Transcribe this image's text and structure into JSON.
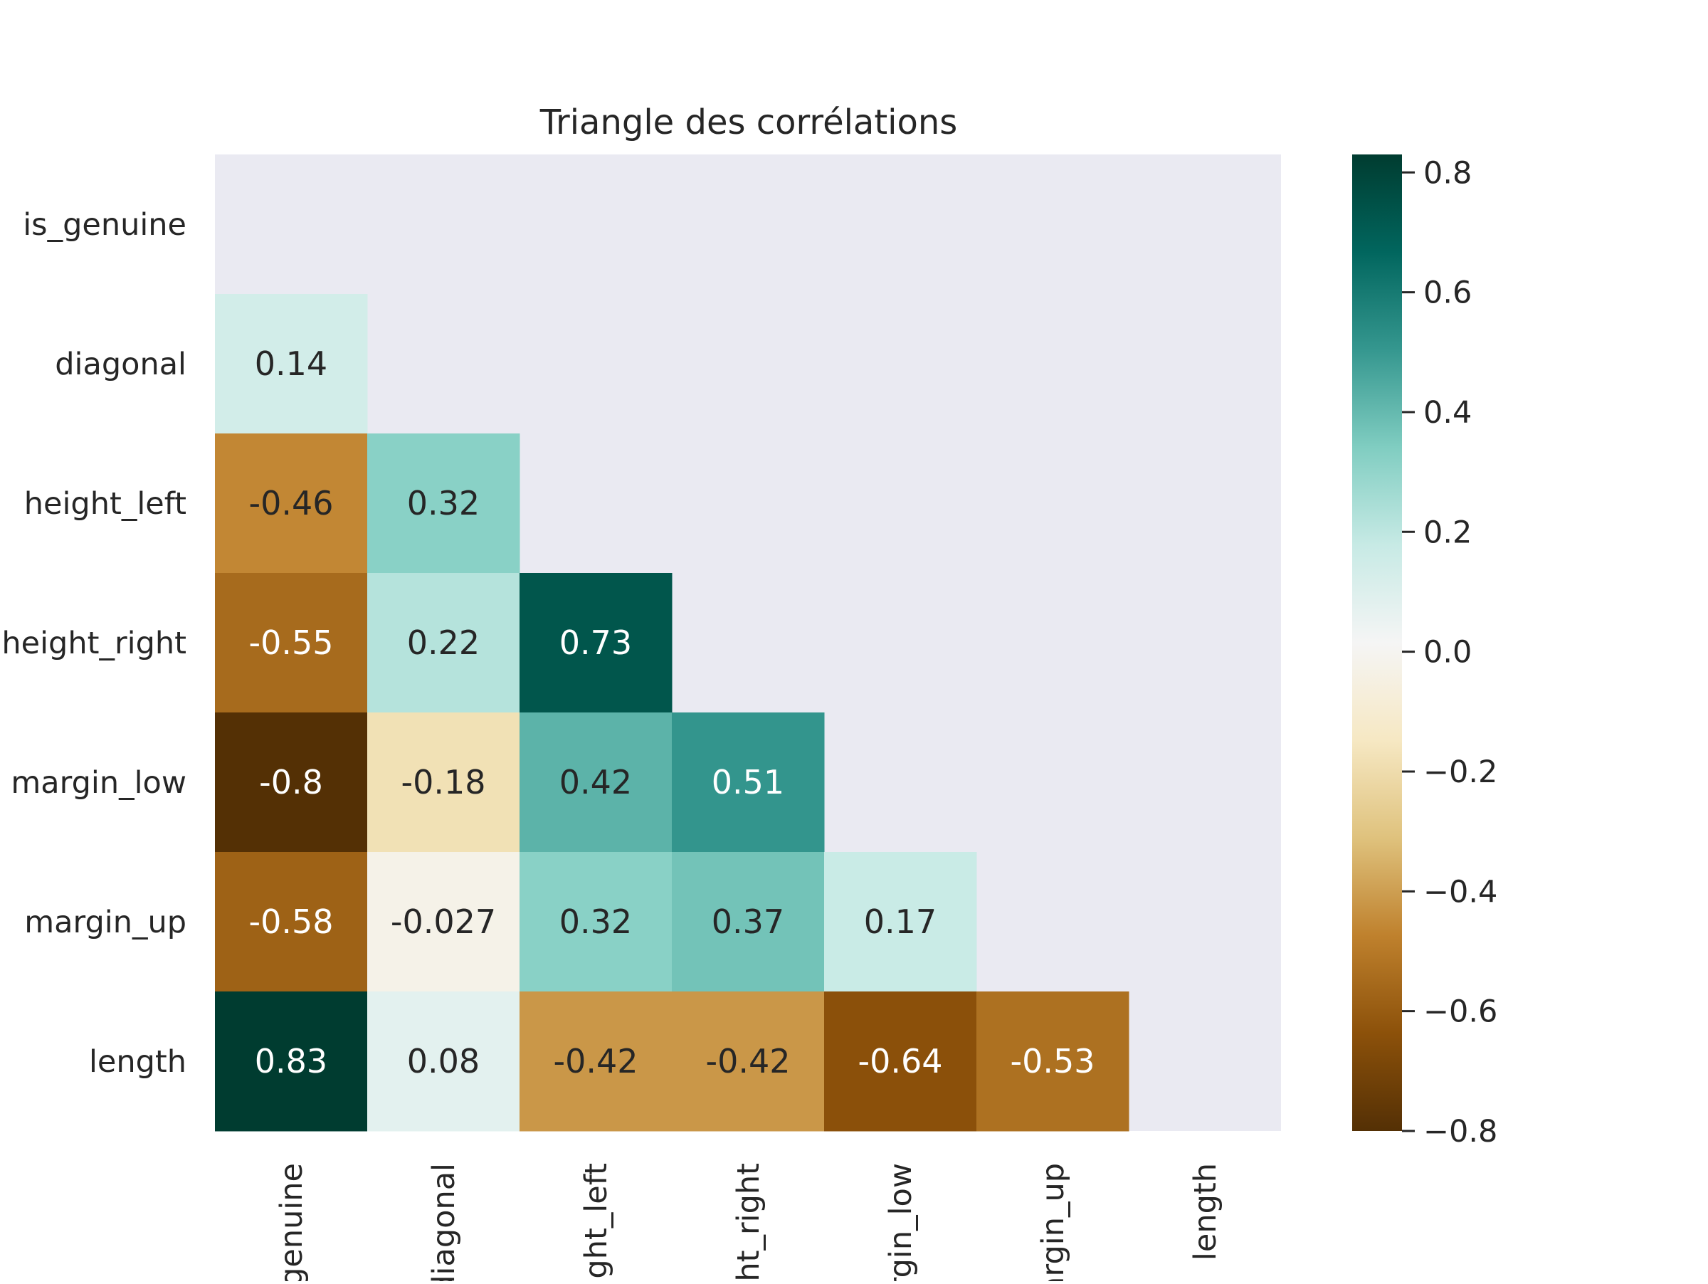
{
  "chart_data": {
    "type": "heatmap",
    "title": "Triangle des corrélations",
    "xlabel": "",
    "ylabel": "",
    "rows": [
      "is_genuine",
      "diagonal",
      "height_left",
      "height_right",
      "margin_low",
      "margin_up",
      "length"
    ],
    "columns": [
      "is_genuine",
      "diagonal",
      "height_left",
      "height_right",
      "margin_low",
      "margin_up",
      "length"
    ],
    "mask": "upper triangle incl. diagonal",
    "cells": [
      {
        "row": 1,
        "col": 0,
        "value": 0.14,
        "label": "0.14"
      },
      {
        "row": 2,
        "col": 0,
        "value": -0.46,
        "label": "-0.46"
      },
      {
        "row": 2,
        "col": 1,
        "value": 0.32,
        "label": "0.32"
      },
      {
        "row": 3,
        "col": 0,
        "value": -0.55,
        "label": "-0.55"
      },
      {
        "row": 3,
        "col": 1,
        "value": 0.22,
        "label": "0.22"
      },
      {
        "row": 3,
        "col": 2,
        "value": 0.73,
        "label": "0.73"
      },
      {
        "row": 4,
        "col": 0,
        "value": -0.8,
        "label": "-0.8"
      },
      {
        "row": 4,
        "col": 1,
        "value": -0.18,
        "label": "-0.18"
      },
      {
        "row": 4,
        "col": 2,
        "value": 0.42,
        "label": "0.42"
      },
      {
        "row": 4,
        "col": 3,
        "value": 0.51,
        "label": "0.51"
      },
      {
        "row": 5,
        "col": 0,
        "value": -0.58,
        "label": "-0.58"
      },
      {
        "row": 5,
        "col": 1,
        "value": -0.027,
        "label": "-0.027"
      },
      {
        "row": 5,
        "col": 2,
        "value": 0.32,
        "label": "0.32"
      },
      {
        "row": 5,
        "col": 3,
        "value": 0.37,
        "label": "0.37"
      },
      {
        "row": 5,
        "col": 4,
        "value": 0.17,
        "label": "0.17"
      },
      {
        "row": 6,
        "col": 0,
        "value": 0.83,
        "label": "0.83"
      },
      {
        "row": 6,
        "col": 1,
        "value": 0.08,
        "label": "0.08"
      },
      {
        "row": 6,
        "col": 2,
        "value": -0.42,
        "label": "-0.42"
      },
      {
        "row": 6,
        "col": 3,
        "value": -0.42,
        "label": "-0.42"
      },
      {
        "row": 6,
        "col": 4,
        "value": -0.64,
        "label": "-0.64"
      },
      {
        "row": 6,
        "col": 5,
        "value": -0.53,
        "label": "-0.53"
      }
    ],
    "colorbar": {
      "min": -0.8,
      "max": 0.83,
      "ticks": [
        -0.8,
        -0.6,
        -0.4,
        -0.2,
        0.0,
        0.2,
        0.4,
        0.6,
        0.8
      ],
      "tick_labels": [
        "−0.8",
        "−0.6",
        "−0.4",
        "−0.2",
        "0.0",
        "0.2",
        "0.4",
        "0.6",
        "0.8"
      ]
    },
    "colormap": "BrBG",
    "colormap_stops": [
      "#543005",
      "#8c510a",
      "#bf812d",
      "#dfc27d",
      "#f6e8c3",
      "#f5f5f5",
      "#c7eae5",
      "#80cdc1",
      "#35978f",
      "#01665e",
      "#003c30"
    ],
    "background_color": "#eaeaf2",
    "grid": false
  }
}
